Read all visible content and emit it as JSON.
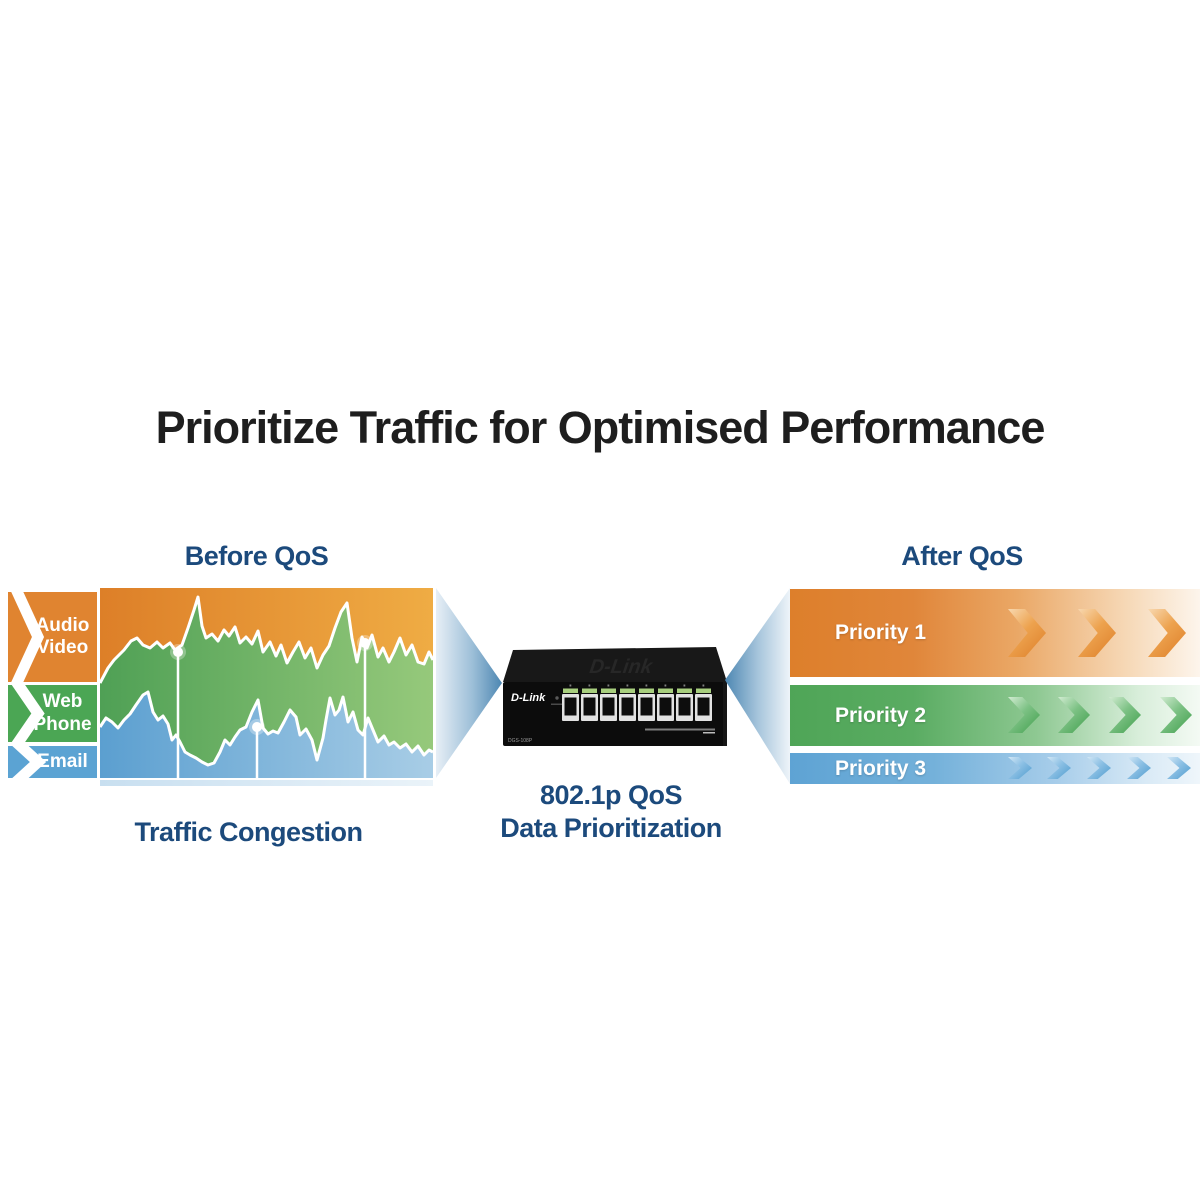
{
  "title": "Prioritize Traffic for Optimised Performance",
  "palette": {
    "heading_blue": "#1c4a7c",
    "title_black": "#1e1e1e",
    "orange": "#e08430",
    "green": "#4ba654",
    "blue": "#5ba3d3",
    "funnel_dark": "#4d87b2",
    "funnel_light": "#ecf3f8",
    "port_green": "#a8cf7e",
    "white": "#ffffff"
  },
  "before": {
    "heading": "Before QoS",
    "caption": "Traffic Congestion",
    "labels": [
      {
        "text": "Audio\nVideo",
        "color": "#e08430"
      },
      {
        "text": "Web\nPhone",
        "color": "#4ba654"
      },
      {
        "text": "Email",
        "color": "#5ba3d3"
      }
    ]
  },
  "center": {
    "brand": "D-Link",
    "model": "DGS-108P",
    "caption_line1": "802.1p QoS",
    "caption_line2": "Data Prioritization",
    "ports": 8
  },
  "after": {
    "heading": "After QoS",
    "bars": [
      {
        "label": "Priority 1",
        "chevron_count": 3,
        "color": "#dd7f2b"
      },
      {
        "label": "Priority 2",
        "chevron_count": 4,
        "color": "#4fa557"
      },
      {
        "label": "Priority 3",
        "chevron_count": 5,
        "color": "#5ea3d4"
      }
    ]
  },
  "chart_data": {
    "type": "area",
    "title": "Before QoS - Traffic Congestion",
    "xlabel": "",
    "ylabel": "",
    "grid": false,
    "legend_position": "left ribbons",
    "note": "Stylized congestion illustration; axes unlabeled. Points are x,y in a 333x190 plot, y measured from top. Orange background = Audio/Video band, green area = Web/Phone, blue area = Email.",
    "plot_size": [
      333,
      190
    ],
    "series": [
      {
        "name": "Web Phone (green area top edge)",
        "points": [
          [
            0,
            95
          ],
          [
            8,
            80
          ],
          [
            14,
            72
          ],
          [
            24,
            62
          ],
          [
            31,
            53
          ],
          [
            37,
            50
          ],
          [
            43,
            57
          ],
          [
            50,
            60
          ],
          [
            57,
            54
          ],
          [
            63,
            60
          ],
          [
            70,
            55
          ],
          [
            75,
            62
          ],
          [
            82,
            57
          ],
          [
            88,
            40
          ],
          [
            94,
            22
          ],
          [
            98,
            9
          ],
          [
            102,
            38
          ],
          [
            106,
            50
          ],
          [
            112,
            46
          ],
          [
            118,
            53
          ],
          [
            124,
            42
          ],
          [
            129,
            48
          ],
          [
            135,
            39
          ],
          [
            140,
            55
          ],
          [
            146,
            49
          ],
          [
            152,
            56
          ],
          [
            158,
            43
          ],
          [
            163,
            64
          ],
          [
            170,
            54
          ],
          [
            176,
            68
          ],
          [
            181,
            57
          ],
          [
            187,
            75
          ],
          [
            193,
            64
          ],
          [
            199,
            54
          ],
          [
            205,
            70
          ],
          [
            211,
            60
          ],
          [
            217,
            80
          ],
          [
            223,
            67
          ],
          [
            229,
            58
          ],
          [
            235,
            40
          ],
          [
            241,
            24
          ],
          [
            247,
            15
          ],
          [
            252,
            50
          ],
          [
            257,
            74
          ],
          [
            262,
            49
          ],
          [
            267,
            60
          ],
          [
            272,
            47
          ],
          [
            278,
            69
          ],
          [
            283,
            60
          ],
          [
            289,
            74
          ],
          [
            294,
            64
          ],
          [
            300,
            50
          ],
          [
            306,
            67
          ],
          [
            312,
            57
          ],
          [
            318,
            74
          ],
          [
            324,
            76
          ],
          [
            329,
            64
          ],
          [
            333,
            72
          ]
        ]
      },
      {
        "name": "Email (blue area top edge)",
        "points": [
          [
            0,
            139
          ],
          [
            6,
            130
          ],
          [
            12,
            134
          ],
          [
            18,
            140
          ],
          [
            24,
            132
          ],
          [
            30,
            126
          ],
          [
            36,
            117
          ],
          [
            43,
            107
          ],
          [
            48,
            104
          ],
          [
            53,
            124
          ],
          [
            58,
            132
          ],
          [
            63,
            128
          ],
          [
            68,
            136
          ],
          [
            72,
            152
          ],
          [
            76,
            147
          ],
          [
            80,
            154
          ],
          [
            85,
            164
          ],
          [
            90,
            167
          ],
          [
            96,
            170
          ],
          [
            102,
            174
          ],
          [
            108,
            177
          ],
          [
            114,
            175
          ],
          [
            120,
            164
          ],
          [
            125,
            152
          ],
          [
            130,
            157
          ],
          [
            135,
            149
          ],
          [
            140,
            142
          ],
          [
            146,
            139
          ],
          [
            152,
            124
          ],
          [
            158,
            112
          ],
          [
            163,
            140
          ],
          [
            168,
            146
          ],
          [
            173,
            143
          ],
          [
            178,
            145
          ],
          [
            184,
            134
          ],
          [
            190,
            122
          ],
          [
            196,
            129
          ],
          [
            200,
            147
          ],
          [
            206,
            141
          ],
          [
            212,
            152
          ],
          [
            217,
            172
          ],
          [
            223,
            150
          ],
          [
            226,
            132
          ],
          [
            230,
            110
          ],
          [
            235,
            127
          ],
          [
            239,
            122
          ],
          [
            243,
            109
          ],
          [
            248,
            134
          ],
          [
            253,
            124
          ],
          [
            258,
            142
          ],
          [
            263,
            147
          ],
          [
            268,
            130
          ],
          [
            273,
            142
          ],
          [
            278,
            154
          ],
          [
            284,
            148
          ],
          [
            289,
            157
          ],
          [
            294,
            154
          ],
          [
            300,
            160
          ],
          [
            306,
            156
          ],
          [
            312,
            164
          ],
          [
            318,
            158
          ],
          [
            324,
            167
          ],
          [
            329,
            162
          ],
          [
            333,
            164
          ]
        ]
      }
    ],
    "markers": [
      [
        78,
        64
      ],
      [
        157,
        139
      ],
      [
        265,
        55
      ]
    ]
  }
}
